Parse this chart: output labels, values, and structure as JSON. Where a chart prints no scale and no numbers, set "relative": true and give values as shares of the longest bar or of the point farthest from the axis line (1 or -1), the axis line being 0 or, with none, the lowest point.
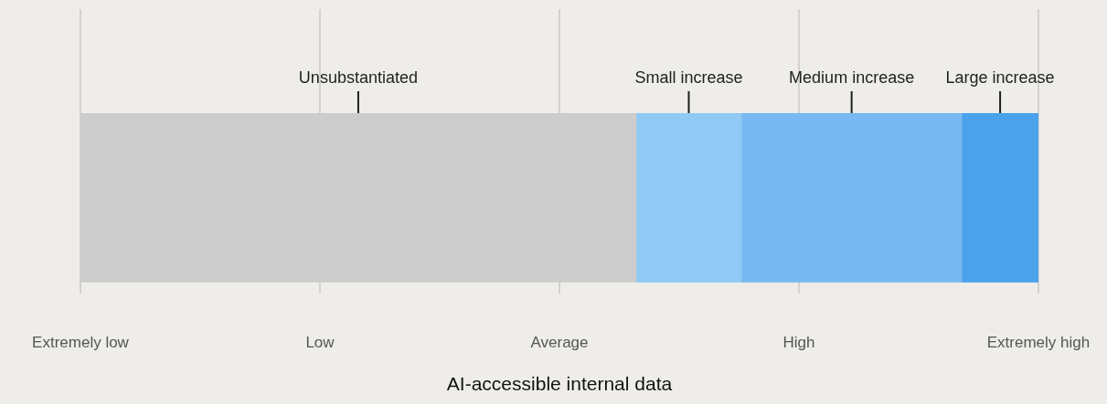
{
  "chart_data": {
    "type": "bar",
    "orientation": "horizontal",
    "stacked": true,
    "relative": true,
    "categories": [
      null
    ],
    "xlabel": "AI-accessible internal data",
    "series": [
      {
        "name": "Unsubstantiated",
        "color": "#cccccc",
        "values": [
          0.58
        ]
      },
      {
        "name": "Small increase",
        "color": "#90caf4",
        "values": [
          0.11
        ]
      },
      {
        "name": "Medium increase",
        "color": "#78b9f1",
        "values": [
          0.23
        ]
      },
      {
        "name": "Large increase",
        "color": "#4aa2eb",
        "values": [
          0.08
        ]
      }
    ],
    "annotations": [
      "Extremely low",
      "Low",
      "Average",
      "High",
      "Extremely high"
    ],
    "grid": "x",
    "legend": false
  }
}
